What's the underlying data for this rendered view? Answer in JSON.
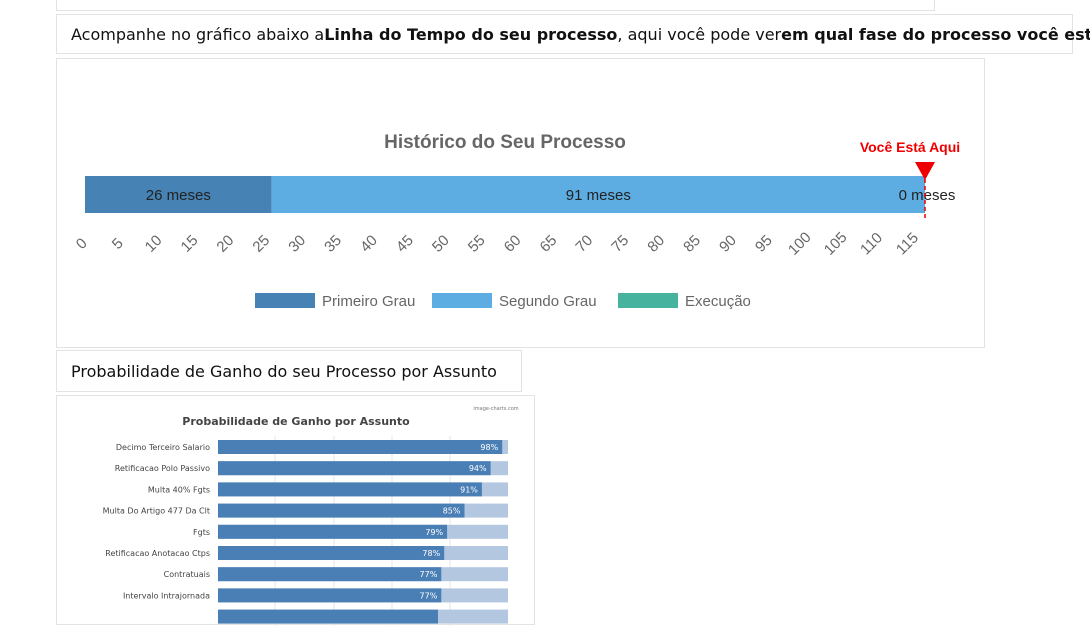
{
  "intro": {
    "part1": "Acompanhe no gráfico abaixo a ",
    "bold1": "Linha do Tempo do seu processo",
    "part2": " , aqui você pode ver ",
    "bold2": "em qual fase do processo você está",
    "part3": "!"
  },
  "subject_heading": "Probabilidade de Ganho do seu Processo por Assunto",
  "chart_data": [
    {
      "type": "bar",
      "orientation": "horizontal-stacked",
      "title": "Histórico do Seu Processo",
      "marker_label": "Você Está Aqui",
      "marker_value": 117,
      "xlim": [
        0,
        117
      ],
      "ticks": [
        0,
        5,
        10,
        15,
        20,
        25,
        30,
        35,
        40,
        45,
        50,
        55,
        60,
        65,
        70,
        75,
        80,
        85,
        90,
        95,
        100,
        105,
        110,
        115
      ],
      "series": [
        {
          "name": "Primeiro Grau",
          "value": 26,
          "label": "26 meses",
          "color": "#4682b4"
        },
        {
          "name": "Segundo Grau",
          "value": 91,
          "label": "91 meses",
          "color": "#5dade2"
        },
        {
          "name": "Execução",
          "value": 0,
          "label": "0 meses",
          "color": "#45b39d"
        }
      ],
      "legend": "bottom"
    },
    {
      "type": "bar",
      "orientation": "horizontal",
      "title": "Probabilidade de Ganho por Assunto",
      "watermark": "image-charts.com",
      "xlim": [
        0,
        100
      ],
      "bar_color": "#4a7fb5",
      "track_color": "#b3c7e0",
      "categories": [
        "Decimo Terceiro Salario",
        "Retificacao Polo Passivo",
        "Multa 40% Fgts",
        "Multa Do Artigo 477 Da Clt",
        "Fgts",
        "Retificacao Anotacao Ctps",
        "Contratuais",
        "Intervalo Intrajornada"
      ],
      "values": [
        98,
        94,
        91,
        85,
        79,
        78,
        77,
        77
      ],
      "value_labels": [
        "98%",
        "94%",
        "91%",
        "85%",
        "79%",
        "78%",
        "77%",
        "77%"
      ]
    }
  ]
}
